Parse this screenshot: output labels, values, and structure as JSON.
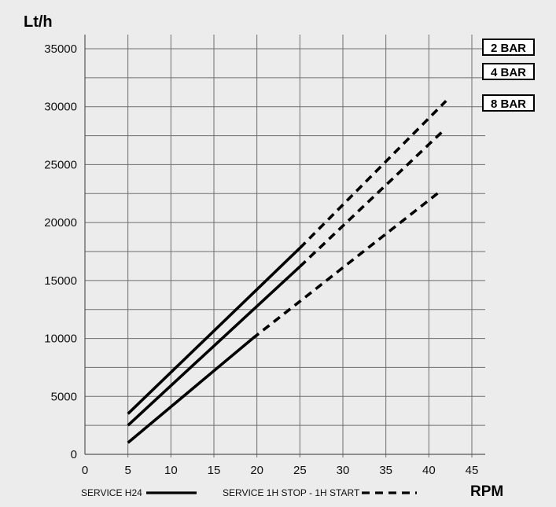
{
  "chart_data": {
    "type": "line",
    "ylabel": "Lt/h",
    "xlabel": "RPM",
    "xlim": [
      0,
      45
    ],
    "ylim": [
      0,
      35000
    ],
    "x_ticks": [
      "0",
      "5",
      "10",
      "15",
      "20",
      "25",
      "30",
      "35",
      "40",
      "45"
    ],
    "y_ticks": [
      "0",
      "5000",
      "10000",
      "15000",
      "20000",
      "25000",
      "30000",
      "35000"
    ],
    "grid": true,
    "series": [
      {
        "name": "2 BAR",
        "solid": {
          "x": [
            5,
            25
          ],
          "y": [
            3500,
            17800
          ]
        },
        "dashed": {
          "x": [
            25,
            42
          ],
          "y": [
            17800,
            30500
          ]
        }
      },
      {
        "name": "4 BAR",
        "solid": {
          "x": [
            5,
            25
          ],
          "y": [
            2500,
            16200
          ]
        },
        "dashed": {
          "x": [
            25,
            41.5
          ],
          "y": [
            16200,
            27800
          ]
        }
      },
      {
        "name": "8 BAR",
        "solid": {
          "x": [
            5,
            19.5
          ],
          "y": [
            1000,
            10000
          ]
        },
        "dashed": {
          "x": [
            19.5,
            41.5
          ],
          "y": [
            10000,
            22800
          ]
        }
      }
    ],
    "legend": {
      "solid_label": "SERVICE H24",
      "dashed_label": "SERVICE 1H STOP - 1H START"
    },
    "colors": {
      "line": "#000000",
      "grid": "#6e6e6e",
      "background": "#ececec"
    }
  }
}
